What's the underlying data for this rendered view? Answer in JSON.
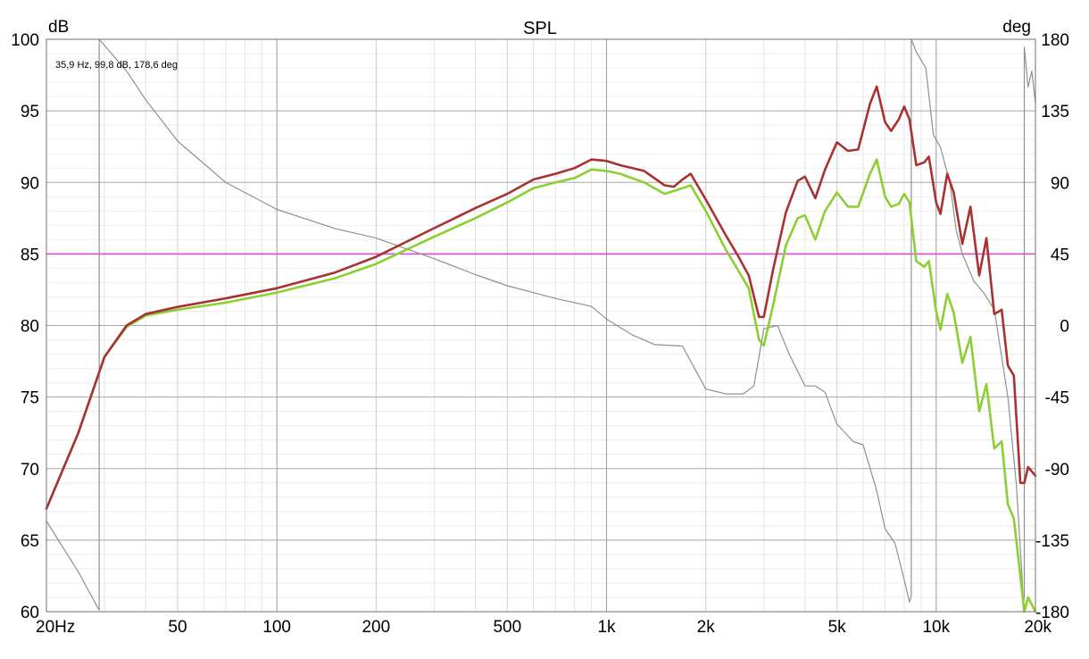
{
  "chart_data": {
    "type": "line",
    "title": "SPL",
    "ylabel": "dB",
    "y2label": "deg",
    "x_scale": "log",
    "xlim": [
      20,
      20000
    ],
    "ylim": [
      60,
      100
    ],
    "y2lim": [
      -180,
      180
    ],
    "grid": true,
    "cursor_readout": "35,9 Hz, 99,8 dB, 178,6 deg",
    "x_ticks": [
      {
        "value": 20,
        "label": "20Hz"
      },
      {
        "value": 50,
        "label": "50"
      },
      {
        "value": 100,
        "label": "100"
      },
      {
        "value": 200,
        "label": "200"
      },
      {
        "value": 500,
        "label": "500"
      },
      {
        "value": 1000,
        "label": "1k"
      },
      {
        "value": 2000,
        "label": "2k"
      },
      {
        "value": 5000,
        "label": "5k"
      },
      {
        "value": 10000,
        "label": "10k"
      },
      {
        "value": 20000,
        "label": "20k"
      }
    ],
    "y_ticks": [
      {
        "value": 100,
        "label": "100"
      },
      {
        "value": 95,
        "label": "95"
      },
      {
        "value": 90,
        "label": "90"
      },
      {
        "value": 85,
        "label": "85"
      },
      {
        "value": 80,
        "label": "80"
      },
      {
        "value": 75,
        "label": "75"
      },
      {
        "value": 70,
        "label": "70"
      },
      {
        "value": 65,
        "label": "65"
      },
      {
        "value": 60,
        "label": "60"
      }
    ],
    "y2_ticks": [
      {
        "value": 180,
        "label": "180"
      },
      {
        "value": 135,
        "label": "135"
      },
      {
        "value": 90,
        "label": "90"
      },
      {
        "value": 45,
        "label": "45"
      },
      {
        "value": 0,
        "label": "0"
      },
      {
        "value": -45,
        "label": "-45"
      },
      {
        "value": -90,
        "label": "-90"
      },
      {
        "value": -135,
        "label": "-135"
      },
      {
        "value": -180,
        "label": "-180"
      }
    ],
    "reference_line": {
      "y": 85,
      "color": "#e040e0"
    },
    "series": [
      {
        "color": "#a83232",
        "axis": "left",
        "points": [
          [
            20,
            67.2
          ],
          [
            25,
            72.5
          ],
          [
            30,
            77.8
          ],
          [
            35,
            80.0
          ],
          [
            40,
            80.8
          ],
          [
            50,
            81.3
          ],
          [
            70,
            81.9
          ],
          [
            100,
            82.6
          ],
          [
            150,
            83.7
          ],
          [
            200,
            84.8
          ],
          [
            300,
            86.8
          ],
          [
            400,
            88.2
          ],
          [
            500,
            89.2
          ],
          [
            600,
            90.2
          ],
          [
            700,
            90.6
          ],
          [
            800,
            91.0
          ],
          [
            900,
            91.6
          ],
          [
            1000,
            91.5
          ],
          [
            1100,
            91.2
          ],
          [
            1300,
            90.8
          ],
          [
            1500,
            89.8
          ],
          [
            1600,
            89.7
          ],
          [
            1700,
            90.2
          ],
          [
            1800,
            90.6
          ],
          [
            2000,
            88.8
          ],
          [
            2300,
            86.3
          ],
          [
            2500,
            84.9
          ],
          [
            2700,
            83.5
          ],
          [
            2900,
            80.6
          ],
          [
            3000,
            80.6
          ],
          [
            3200,
            83.9
          ],
          [
            3500,
            87.9
          ],
          [
            3800,
            90.1
          ],
          [
            4000,
            90.4
          ],
          [
            4300,
            88.9
          ],
          [
            4600,
            90.9
          ],
          [
            5000,
            92.8
          ],
          [
            5400,
            92.2
          ],
          [
            5800,
            92.3
          ],
          [
            6300,
            95.5
          ],
          [
            6600,
            96.7
          ],
          [
            7000,
            94.2
          ],
          [
            7300,
            93.6
          ],
          [
            7700,
            94.4
          ],
          [
            8000,
            95.3
          ],
          [
            8300,
            94.4
          ],
          [
            8700,
            91.2
          ],
          [
            9200,
            91.4
          ],
          [
            9500,
            91.8
          ],
          [
            10000,
            88.6
          ],
          [
            10300,
            87.8
          ],
          [
            10800,
            90.6
          ],
          [
            11300,
            89.3
          ],
          [
            12000,
            85.7
          ],
          [
            12700,
            88.3
          ],
          [
            13500,
            83.5
          ],
          [
            14200,
            86.1
          ],
          [
            15000,
            80.8
          ],
          [
            15800,
            81.1
          ],
          [
            16500,
            77.2
          ],
          [
            17200,
            76.5
          ],
          [
            18000,
            69.0
          ],
          [
            18500,
            69.0
          ],
          [
            19000,
            70.1
          ],
          [
            20000,
            69.5
          ]
        ]
      },
      {
        "color": "#8ccf32",
        "axis": "left",
        "points": [
          [
            20,
            67.2
          ],
          [
            25,
            72.5
          ],
          [
            30,
            77.8
          ],
          [
            35,
            79.9
          ],
          [
            40,
            80.7
          ],
          [
            50,
            81.1
          ],
          [
            70,
            81.6
          ],
          [
            100,
            82.3
          ],
          [
            150,
            83.3
          ],
          [
            200,
            84.3
          ],
          [
            300,
            86.2
          ],
          [
            400,
            87.5
          ],
          [
            500,
            88.6
          ],
          [
            600,
            89.6
          ],
          [
            700,
            90.0
          ],
          [
            800,
            90.3
          ],
          [
            900,
            90.9
          ],
          [
            1000,
            90.8
          ],
          [
            1100,
            90.6
          ],
          [
            1300,
            90.0
          ],
          [
            1500,
            89.2
          ],
          [
            1700,
            89.6
          ],
          [
            1800,
            89.8
          ],
          [
            2000,
            88.0
          ],
          [
            2300,
            85.3
          ],
          [
            2500,
            83.9
          ],
          [
            2700,
            82.6
          ],
          [
            2900,
            79.0
          ],
          [
            3000,
            78.6
          ],
          [
            3200,
            81.4
          ],
          [
            3500,
            85.6
          ],
          [
            3800,
            87.5
          ],
          [
            4000,
            87.7
          ],
          [
            4300,
            86.0
          ],
          [
            4600,
            88.0
          ],
          [
            5000,
            89.3
          ],
          [
            5400,
            88.3
          ],
          [
            5800,
            88.3
          ],
          [
            6300,
            90.6
          ],
          [
            6600,
            91.6
          ],
          [
            7000,
            89.0
          ],
          [
            7300,
            88.3
          ],
          [
            7700,
            88.5
          ],
          [
            8000,
            89.2
          ],
          [
            8300,
            88.6
          ],
          [
            8700,
            84.5
          ],
          [
            9200,
            84.1
          ],
          [
            9500,
            84.5
          ],
          [
            10000,
            81.0
          ],
          [
            10300,
            79.7
          ],
          [
            10800,
            82.2
          ],
          [
            11300,
            80.9
          ],
          [
            12000,
            77.4
          ],
          [
            12700,
            79.2
          ],
          [
            13500,
            74.0
          ],
          [
            14200,
            75.9
          ],
          [
            15000,
            71.4
          ],
          [
            15800,
            71.9
          ],
          [
            16500,
            67.5
          ],
          [
            17200,
            66.5
          ],
          [
            18000,
            62.5
          ],
          [
            18500,
            60.0
          ],
          [
            19000,
            61.0
          ],
          [
            20000,
            60.0
          ]
        ]
      },
      {
        "color": "#909090",
        "axis": "right",
        "points": [
          [
            20,
            -123
          ],
          [
            25,
            -155
          ],
          [
            28.9,
            -179
          ],
          [
            28.91,
            180
          ],
          [
            35,
            160
          ],
          [
            40,
            142
          ],
          [
            50,
            116
          ],
          [
            70,
            90
          ],
          [
            100,
            73
          ],
          [
            150,
            61
          ],
          [
            200,
            55
          ],
          [
            300,
            42
          ],
          [
            400,
            32
          ],
          [
            500,
            25
          ],
          [
            700,
            17
          ],
          [
            900,
            12
          ],
          [
            1000,
            4
          ],
          [
            1200,
            -6
          ],
          [
            1400,
            -12
          ],
          [
            1700,
            -13
          ],
          [
            2000,
            -40
          ],
          [
            2300,
            -43
          ],
          [
            2600,
            -43
          ],
          [
            2800,
            -38
          ],
          [
            3000,
            -2
          ],
          [
            3300,
            0
          ],
          [
            3600,
            -19
          ],
          [
            4000,
            -38
          ],
          [
            4300,
            -38
          ],
          [
            4600,
            -42
          ],
          [
            5000,
            -62
          ],
          [
            5600,
            -73
          ],
          [
            6000,
            -75
          ],
          [
            6600,
            -104
          ],
          [
            7000,
            -128
          ],
          [
            7500,
            -137
          ],
          [
            8000,
            -160
          ],
          [
            8300,
            -174
          ],
          [
            8400,
            -170
          ],
          [
            8401,
            180
          ],
          [
            8700,
            172
          ],
          [
            9300,
            162
          ],
          [
            9800,
            120
          ],
          [
            10300,
            112
          ],
          [
            11000,
            90
          ],
          [
            11500,
            60
          ],
          [
            12000,
            45
          ],
          [
            13000,
            28
          ],
          [
            14000,
            20
          ],
          [
            15000,
            10
          ],
          [
            16500,
            -45
          ],
          [
            17500,
            -100
          ],
          [
            18200,
            -157
          ],
          [
            18400,
            -175
          ],
          [
            18500,
            -170
          ],
          [
            18501,
            175
          ],
          [
            19000,
            150
          ],
          [
            19500,
            160
          ],
          [
            20000,
            140
          ]
        ]
      }
    ]
  }
}
